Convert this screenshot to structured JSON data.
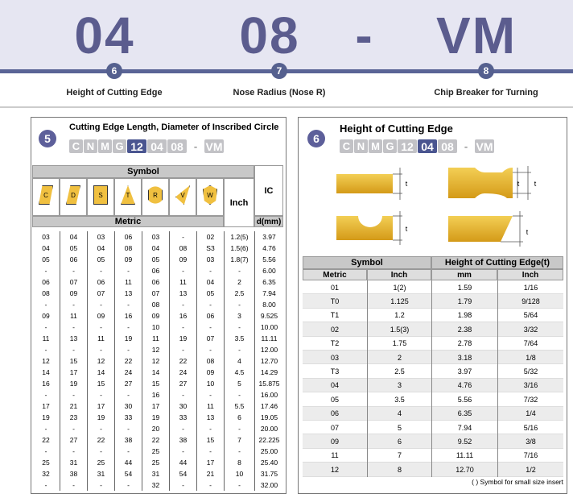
{
  "header": {
    "items": [
      {
        "code": "04",
        "number": "6",
        "label": "Height of Cutting Edge"
      },
      {
        "code": "08",
        "number": "7",
        "label": "Nose Radius (Nose R)"
      },
      {
        "code": "VM",
        "number": "8",
        "label": "Chip Breaker for Turning"
      }
    ],
    "separator": "-"
  },
  "left": {
    "number": "5",
    "title": "Cutting Edge Length, Diameter of Inscribed Circle",
    "code": [
      "C",
      "N",
      "M",
      "G",
      "12",
      "04",
      "08",
      "-",
      "VM"
    ],
    "table": {
      "symbol": "Symbol",
      "shapes": [
        "C",
        "D",
        "S",
        "T",
        "R",
        "V",
        "W"
      ],
      "inch": "Inch",
      "ic": "IC",
      "metric": "Metric",
      "unit": "d(mm)",
      "rows": [
        [
          "03",
          "04",
          "03",
          "06",
          "03",
          "-",
          "02",
          "1.2(5)",
          "3.97"
        ],
        [
          "04",
          "05",
          "04",
          "08",
          "04",
          "08",
          "S3",
          "1.5(6)",
          "4.76"
        ],
        [
          "05",
          "06",
          "05",
          "09",
          "05",
          "09",
          "03",
          "1.8(7)",
          "5.56"
        ],
        [
          "-",
          "-",
          "-",
          "-",
          "06",
          "-",
          "-",
          "-",
          "6.00"
        ],
        [
          "06",
          "07",
          "06",
          "11",
          "06",
          "11",
          "04",
          "2",
          "6.35"
        ],
        [
          "08",
          "09",
          "07",
          "13",
          "07",
          "13",
          "05",
          "2.5",
          "7.94"
        ],
        [
          "-",
          "-",
          "-",
          "-",
          "08",
          "-",
          "-",
          "-",
          "8.00"
        ],
        [
          "09",
          "11",
          "09",
          "16",
          "09",
          "16",
          "06",
          "3",
          "9.525"
        ],
        [
          "-",
          "-",
          "-",
          "-",
          "10",
          "-",
          "-",
          "-",
          "10.00"
        ],
        [
          "11",
          "13",
          "11",
          "19",
          "11",
          "19",
          "07",
          "3.5",
          "11.11"
        ],
        [
          "-",
          "-",
          "-",
          "-",
          "12",
          "-",
          "-",
          "-",
          "12.00"
        ],
        [
          "12",
          "15",
          "12",
          "22",
          "12",
          "22",
          "08",
          "4",
          "12.70"
        ],
        [
          "14",
          "17",
          "14",
          "24",
          "14",
          "24",
          "09",
          "4.5",
          "14.29"
        ],
        [
          "16",
          "19",
          "15",
          "27",
          "15",
          "27",
          "10",
          "5",
          "15.875"
        ],
        [
          "-",
          "-",
          "-",
          "-",
          "16",
          "-",
          "-",
          "-",
          "16.00"
        ],
        [
          "17",
          "21",
          "17",
          "30",
          "17",
          "30",
          "11",
          "5.5",
          "17.46"
        ],
        [
          "19",
          "23",
          "19",
          "33",
          "19",
          "33",
          "13",
          "6",
          "19.05"
        ],
        [
          "-",
          "-",
          "-",
          "-",
          "20",
          "-",
          "-",
          "-",
          "20.00"
        ],
        [
          "22",
          "27",
          "22",
          "38",
          "22",
          "38",
          "15",
          "7",
          "22.225"
        ],
        [
          "-",
          "-",
          "-",
          "-",
          "25",
          "-",
          "-",
          "-",
          "25.00"
        ],
        [
          "25",
          "31",
          "25",
          "44",
          "25",
          "44",
          "17",
          "8",
          "25.40"
        ],
        [
          "32",
          "38",
          "31",
          "54",
          "31",
          "54",
          "21",
          "10",
          "31.75"
        ],
        [
          "-",
          "-",
          "-",
          "-",
          "32",
          "-",
          "-",
          "-",
          "32.00"
        ]
      ]
    }
  },
  "right": {
    "number": "6",
    "title": "Height of Cutting Edge",
    "code": [
      "C",
      "N",
      "M",
      "G",
      "12",
      "04",
      "08",
      "-",
      "VM"
    ],
    "diagram_label": "t",
    "table": {
      "symbol": "Symbol",
      "height": "Height of Cutting Edge(t)",
      "sub": [
        "Metric",
        "Inch",
        "mm",
        "Inch"
      ],
      "rows": [
        [
          "01",
          "1(2)",
          "1.59",
          "1/16"
        ],
        [
          "T0",
          "1.125",
          "1.79",
          "9/128"
        ],
        [
          "T1",
          "1.2",
          "1.98",
          "5/64"
        ],
        [
          "02",
          "1.5(3)",
          "2.38",
          "3/32"
        ],
        [
          "T2",
          "1.75",
          "2.78",
          "7/64"
        ],
        [
          "03",
          "2",
          "3.18",
          "1/8"
        ],
        [
          "T3",
          "2.5",
          "3.97",
          "5/32"
        ],
        [
          "04",
          "3",
          "4.76",
          "3/16"
        ],
        [
          "05",
          "3.5",
          "5.56",
          "7/32"
        ],
        [
          "06",
          "4",
          "6.35",
          "1/4"
        ],
        [
          "07",
          "5",
          "7.94",
          "5/16"
        ],
        [
          "09",
          "6",
          "9.52",
          "3/8"
        ],
        [
          "11",
          "7",
          "11.11",
          "7/16"
        ],
        [
          "12",
          "8",
          "12.70",
          "1/2"
        ]
      ]
    },
    "note": "( ) Symbol for small size insert"
  }
}
